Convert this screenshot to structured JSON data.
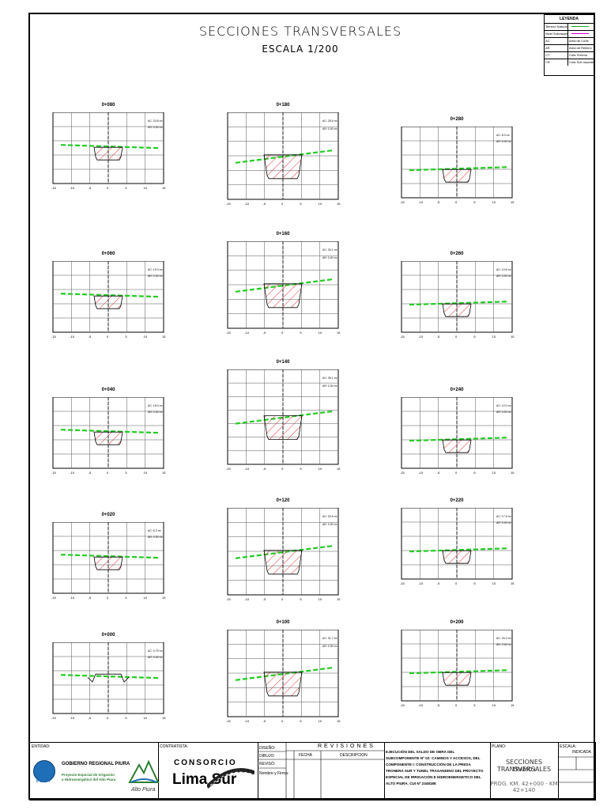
{
  "title": "SECCIONES TRANSVERSALES",
  "scale": "ESCALA 1/200",
  "legend": {
    "header": "LEYENDA",
    "rows": [
      {
        "code": "Terreno Natural",
        "desc": "",
        "swatch": "#22aa22"
      },
      {
        "code": "Nivel Subrasante",
        "desc": "",
        "swatch": "#cc00cc"
      },
      {
        "code": "AC",
        "desc": "Area de Corte",
        "swatch": ""
      },
      {
        "code": "AR",
        "desc": "Area de Relleno",
        "swatch": ""
      },
      {
        "code": "CT",
        "desc": "Cota Terreno",
        "swatch": ""
      },
      {
        "code": "CR",
        "desc": "Cota Sub rasante",
        "swatch": ""
      }
    ]
  },
  "sections": [
    {
      "label": "0+080",
      "ac": "AC: 20.8 m²",
      "ar": "AR: 0.00 m²",
      "col": 0,
      "row": 0
    },
    {
      "label": "0+180",
      "ac": "AC: 25.6 m²",
      "ar": "AR: 0.00 m²",
      "col": 1,
      "row": 0
    },
    {
      "label": "0+280",
      "ac": "AC: 8.3 m²",
      "ar": "AR: 0.00 m²",
      "col": 2,
      "row": 0
    },
    {
      "label": "0+060",
      "ac": "AC: 15.3 m²",
      "ar": "AR: 0.00 m²",
      "col": 0,
      "row": 1
    },
    {
      "label": "0+160",
      "ac": "AC: 30.1 m²",
      "ar": "AR: 0.00 m²",
      "col": 1,
      "row": 1
    },
    {
      "label": "0+260",
      "ac": "AC: 10.5 m²",
      "ar": "AR: 0.00 m²",
      "col": 2,
      "row": 1
    },
    {
      "label": "0+040",
      "ac": "AC: 15.0 m²",
      "ar": "AR: 0.00 m²",
      "col": 0,
      "row": 2
    },
    {
      "label": "0+140",
      "ac": "AC: 35.1 m²",
      "ar": "AR: 0.00 m²",
      "col": 1,
      "row": 2
    },
    {
      "label": "0+240",
      "ac": "AC: 12.0 m²",
      "ar": "AR: 0.00 m²",
      "col": 2,
      "row": 2
    },
    {
      "label": "0+020",
      "ac": "AC: 6.2 m²",
      "ar": "AR: 0.00 m²",
      "col": 0,
      "row": 3
    },
    {
      "label": "0+120",
      "ac": "AC: 32.5 m²",
      "ar": "AR: 0.00 m²",
      "col": 1,
      "row": 3
    },
    {
      "label": "0+220",
      "ac": "AC: 17.9 m²",
      "ar": "AR: 0.00 m²",
      "col": 2,
      "row": 3
    },
    {
      "label": "0+000",
      "ac": "AC: 0.79 m²",
      "ar": "AR: 0.00 m²",
      "col": 0,
      "row": 4
    },
    {
      "label": "0+100",
      "ac": "AC: 31.7 m²",
      "ar": "AR: 0.00 m²",
      "col": 1,
      "row": 4
    },
    {
      "label": "0+200",
      "ac": "AC: 20.2 m²",
      "ar": "AR: 0.00 m²",
      "col": 2,
      "row": 4
    }
  ],
  "axis_x_ticks": [
    "-15",
    "-10",
    "-5",
    "0",
    "5",
    "10",
    "15"
  ],
  "titleblock": {
    "entidad": "ENTIDAD:",
    "gobierno": "GOBIERNO REGIONAL PIURA",
    "proyecto": "Proyecto Especial de Irrigación e Hidroenergético del Alto Piura",
    "logo_pura": "PURA",
    "alto_piura": "Alto Piura",
    "contratista": "CONTRATISTA:",
    "consorcio": "CONSORCIO",
    "lima_sur": "Lima Sur",
    "revisiones": "REVISIONES",
    "diseno": "DISEÑO:",
    "dibujo": "DIBUJO:",
    "reviso": "REVISÓ:",
    "aprobo": "Nombre y Firma:",
    "fecha": "FECHA",
    "descripcion": "DESCRIPCION",
    "description": "EJECUCIÓN DEL SALDO DE OBRA DEL SUBCOMPONENTE Nº 02: CAMINOS Y ACCESOS, DEL COMPONENTE I: CONSTRUCCIÓN DE LA PRESA TRONERA SUR Y TUNEL TRASANDINO DEL PROYECTO ESPECIAL DE IRRIGACIÓN E HIDROENERGETICO DEL ALTO PIURA. CUI Nº 2348188",
    "plano": "PLANO:",
    "sheet_title": "SECCIONES TRANSVERSALES",
    "tramo": "TRAMO I",
    "prog": "PROG. KM. 42+000 - KM 42+140",
    "escala": "ESCALA:",
    "fecha_val": "INDICADA"
  }
}
